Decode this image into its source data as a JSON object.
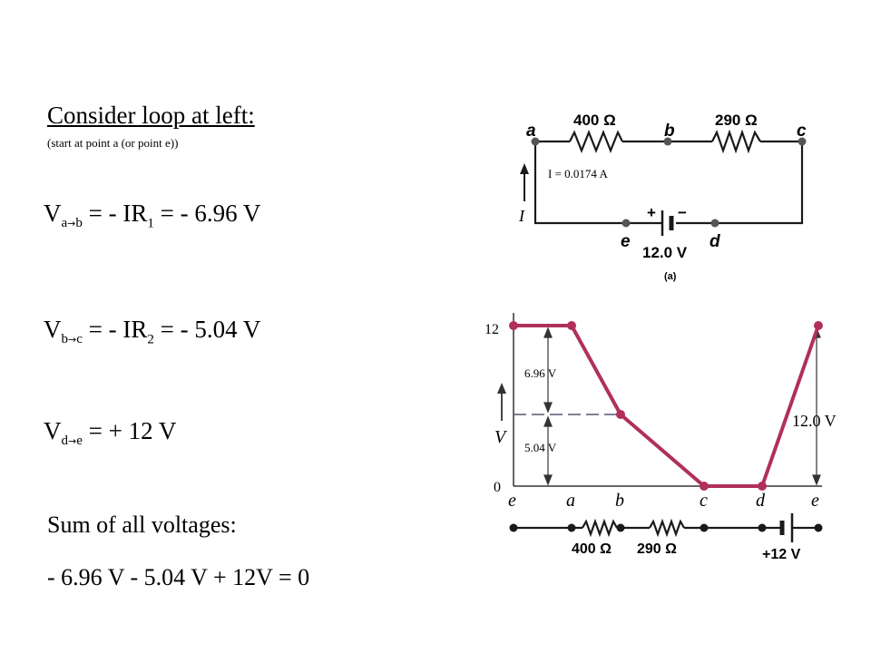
{
  "slide": {
    "title": "Consider loop at left:",
    "subtitle": "(start at point a (or point e))",
    "equations": [
      {
        "v": "V",
        "from": "a",
        "arrow": "→",
        "to": "b",
        "rest": " = - IR",
        "rsub": "1",
        "tail": " = - 6.96 V"
      },
      {
        "v": "V",
        "from": "b",
        "arrow": "→",
        "to": "c",
        "rest": " = - IR",
        "rsub": "2",
        "tail": " = - 5.04 V"
      },
      {
        "v": "V",
        "from": "d",
        "arrow": "→",
        "to": "e",
        "rest": " = + 12 V",
        "rsub": "",
        "tail": ""
      }
    ],
    "sum_label": "Sum of all voltages:",
    "sum_equation": "- 6.96 V - 5.04 V + 12V = 0"
  },
  "circuit": {
    "nodes": {
      "a": "a",
      "b": "b",
      "c": "c",
      "d": "d",
      "e": "e"
    },
    "r1": "400 Ω",
    "r2": "290 Ω",
    "battery": "12.0 V",
    "plus": "+",
    "minus": "−",
    "current_label": "I = 0.0174 A",
    "current_symbol": "I",
    "figure_label": "(a)"
  },
  "graph": {
    "y_axis_symbol": "V",
    "y_ticks": [
      "12",
      "0"
    ],
    "x_labels": [
      "e",
      "a",
      "b",
      "c",
      "d",
      "e"
    ],
    "annot_upper": "6.96 V",
    "annot_lower": "5.04 V",
    "annot_right": "12.0 V",
    "bottom_r1": "400 Ω",
    "bottom_r2": "290 Ω",
    "bottom_battery": "+12 V",
    "line_color": "#b0305a"
  }
}
